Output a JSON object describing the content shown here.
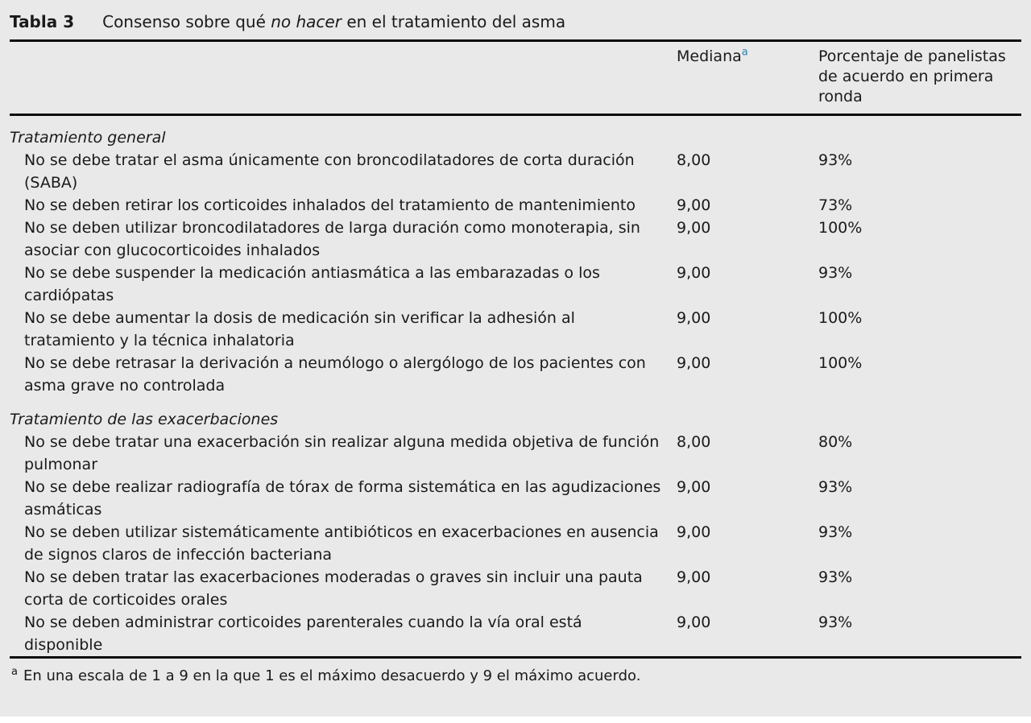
{
  "colors": {
    "page_background": "#e9e9e9",
    "text": "#1a1a1a",
    "rule": "#0d0d0d",
    "superscript_accent": "#2d7fb3"
  },
  "table": {
    "label": "Tabla 3",
    "title": {
      "pre": "Consenso sobre qué ",
      "italic": "no hacer",
      "post": " en el tratamiento del asma"
    },
    "header": {
      "mediana_label": "Mediana",
      "mediana_superscript": "a",
      "porcentaje_label": "Porcentaje de panelistas de acuerdo en primera ronda"
    },
    "sections": [
      {
        "header": "Tratamiento general",
        "rows": [
          {
            "statement": "No se debe tratar el asma únicamente con broncodilatadores de corta duración (SABA)",
            "mediana": "8,00",
            "porcentaje": "93%"
          },
          {
            "statement": "No se deben retirar los corticoides inhalados del tratamiento de mantenimiento",
            "mediana": "9,00",
            "porcentaje": "73%"
          },
          {
            "statement": "No se deben utilizar broncodilatadores de larga duración como monoterapia, sin asociar con glucocorticoides inhalados",
            "mediana": "9,00",
            "porcentaje": "100%"
          },
          {
            "statement": "No se debe suspender la medicación antiasmática a las embarazadas o los cardiópatas",
            "mediana": "9,00",
            "porcentaje": "93%"
          },
          {
            "statement": "No se debe aumentar la dosis de medicación sin verificar la adhesión al tratamiento y la técnica inhalatoria",
            "mediana": "9,00",
            "porcentaje": "100%"
          },
          {
            "statement": "No se debe retrasar la derivación a neumólogo o alergólogo de los pacientes con asma grave no controlada",
            "mediana": "9,00",
            "porcentaje": "100%"
          }
        ]
      },
      {
        "header": "Tratamiento de las exacerbaciones",
        "rows": [
          {
            "statement": "No se debe tratar una exacerbación sin realizar alguna medida objetiva de función pulmonar",
            "mediana": "8,00",
            "porcentaje": "80%"
          },
          {
            "statement": "No se debe realizar radiografía de tórax de forma sistemática en las agudizaciones asmáticas",
            "mediana": "9,00",
            "porcentaje": "93%"
          },
          {
            "statement": "No se deben utilizar sistemáticamente antibióticos en exacerbaciones en ausencia de signos claros de infección bacteriana",
            "mediana": "9,00",
            "porcentaje": "93%"
          },
          {
            "statement": "No se deben tratar las exacerbaciones moderadas o graves sin incluir una pauta corta de corticoides orales",
            "mediana": "9,00",
            "porcentaje": "93%"
          },
          {
            "statement": "No se deben administrar corticoides parenterales cuando la vía oral está disponible",
            "mediana": "9,00",
            "porcentaje": "93%"
          }
        ]
      }
    ],
    "footnote": {
      "marker": "a",
      "text": "En una escala de 1 a 9 en la que 1 es el máximo desacuerdo y 9 el máximo acuerdo."
    }
  }
}
